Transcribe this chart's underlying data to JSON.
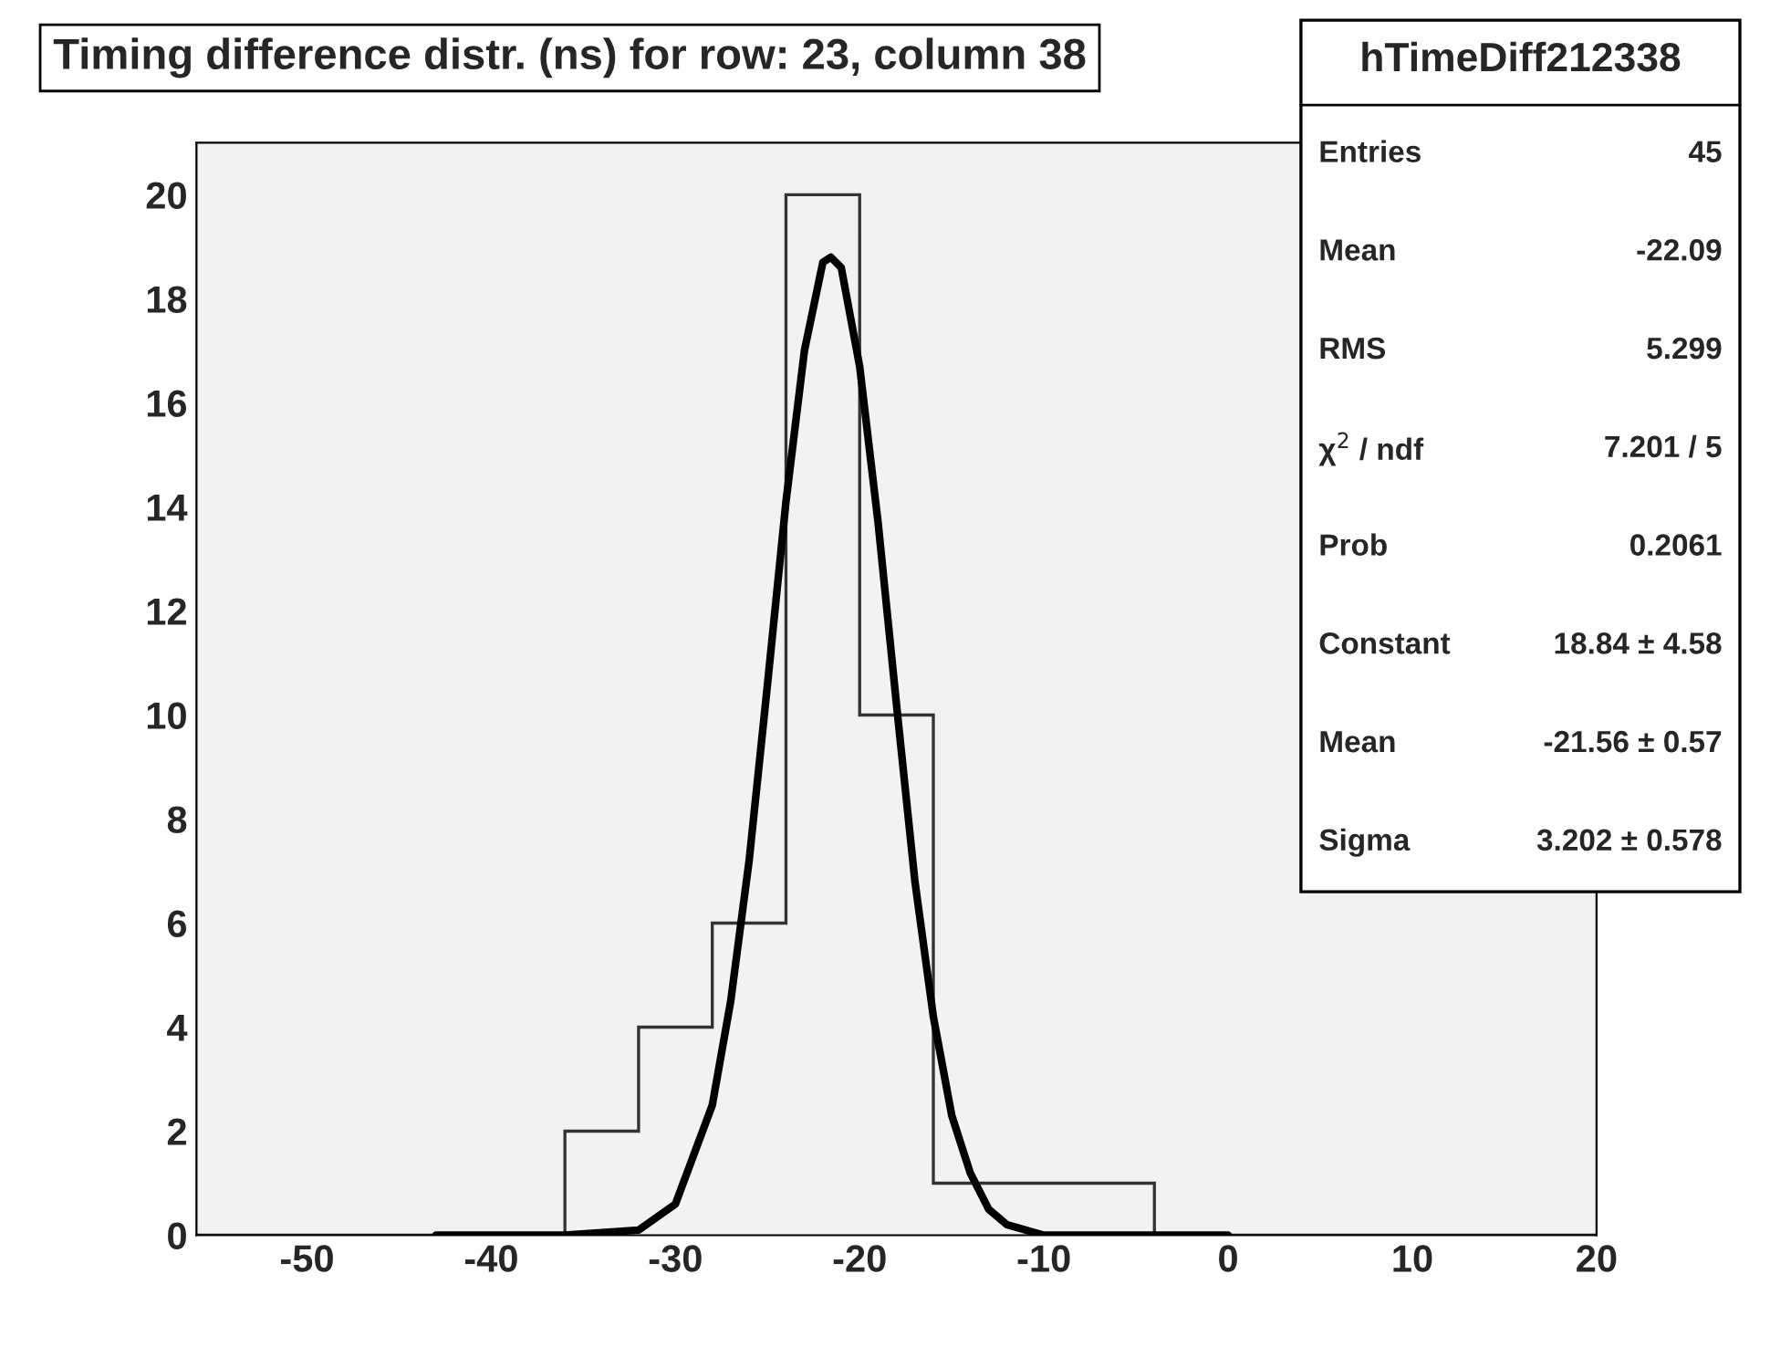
{
  "chart_data": {
    "type": "histogram",
    "title": "Timing difference distr. (ns) for row: 23, column 38",
    "bins": [
      -56,
      -52,
      -48,
      -44,
      -40,
      -36,
      -32,
      -28,
      -24,
      -20,
      -16,
      -12,
      -8,
      -4,
      0,
      4,
      8,
      12,
      16,
      20
    ],
    "values": [
      0,
      0,
      0,
      0,
      0,
      2,
      4,
      6,
      20,
      10,
      1,
      1,
      1,
      0,
      0,
      0,
      0,
      0,
      0
    ],
    "color": "#333333",
    "series": [
      {
        "type": "line",
        "color": "#000000",
        "x": [
          -43,
          -36,
          -32,
          -30,
          -28,
          -27,
          -26,
          -25,
          -24,
          -23,
          -22,
          -21.56,
          -21,
          -20,
          -19,
          -18,
          -17,
          -16,
          -15,
          -14,
          -13,
          -12,
          -10,
          -6,
          0
        ],
        "values": [
          0,
          0,
          0.1,
          0.6,
          2.5,
          4.5,
          7.2,
          10.6,
          14.1,
          17.0,
          18.7,
          18.8,
          18.6,
          16.7,
          13.7,
          10.2,
          6.8,
          4.2,
          2.3,
          1.2,
          0.5,
          0.2,
          0,
          0,
          0
        ]
      }
    ],
    "xlim": [
      -56,
      20
    ],
    "ylim": [
      0,
      21
    ],
    "xticks": [
      -50,
      -40,
      -30,
      -20,
      -10,
      0,
      10,
      20
    ],
    "yticks": [
      0,
      2,
      4,
      6,
      8,
      10,
      12,
      14,
      16,
      18,
      20
    ],
    "grid": false,
    "legend": false,
    "annotations": [
      "hTimeDiff212338",
      "Entries",
      "45",
      "Mean",
      "-22.09",
      "RMS",
      "5.299",
      "χ$^{2}$ / ndf",
      "7.201 / 5",
      "Prob",
      "0.2061",
      "Constant",
      "18.84 ± 4.58",
      "Mean",
      "-21.56 ± 0.57",
      "Sigma",
      "3.202 ± 0.578"
    ]
  }
}
